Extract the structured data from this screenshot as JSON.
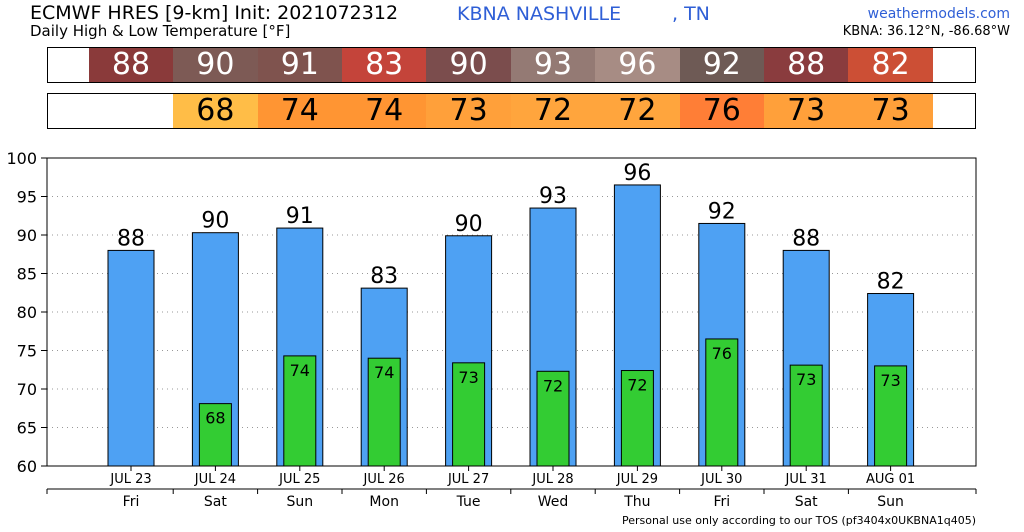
{
  "header": {
    "title": "ECMWF HRES [9-km] Init: 2021072312",
    "subtitle": "Daily High & Low Temperature [°F]",
    "station": "KBNA NASHVILLE",
    "state": ", TN",
    "site": "weathermodels.com",
    "coords": "KBNA: 36.12°N, -86.68°W"
  },
  "footer": "Personal use only according to our TOS (pf3404x0UKBNA1q405)",
  "strips": {
    "high_colors": [
      "#8a3a3a",
      "#7d5a55",
      "#7f534e",
      "#c4443a",
      "#7b4d4d",
      "#947a74",
      "#a78c84",
      "#6e5a55",
      "#8a3c3e",
      "#cc4f35"
    ],
    "low_colors": [
      "#ffbd47",
      "#ff9533",
      "#ff9533",
      "#ffa03a",
      "#ffa53d",
      "#ffa53d",
      "#ff7e36",
      "#ffa03a",
      "#ffa03a"
    ]
  },
  "chart_data": {
    "type": "bar",
    "categories": [
      "JUL 23",
      "JUL 24",
      "JUL 25",
      "JUL 26",
      "JUL 27",
      "JUL 28",
      "JUL 29",
      "JUL 30",
      "JUL 31",
      "AUG 01"
    ],
    "weekdays": [
      "Fri",
      "Sat",
      "Sun",
      "Mon",
      "Tue",
      "Wed",
      "Thu",
      "Fri",
      "Sat",
      "Sun"
    ],
    "series": [
      {
        "values": [
          88,
          90.3,
          90.9,
          83.1,
          89.9,
          93.5,
          96.5,
          91.5,
          88,
          82.4
        ],
        "labels": [
          "88",
          "90",
          "91",
          "83",
          "90",
          "93",
          "96",
          "92",
          "88",
          "82"
        ],
        "color": "#4ea1f3"
      },
      {
        "values": [
          null,
          68.1,
          74.3,
          74,
          73.4,
          72.3,
          72.4,
          76.5,
          73.1,
          73
        ],
        "labels": [
          "",
          "68",
          "74",
          "74",
          "73",
          "72",
          "72",
          "76",
          "73",
          "73"
        ],
        "color": "#33cc33"
      }
    ],
    "ylim": [
      60,
      100
    ],
    "yticks": [
      "60",
      "65",
      "70",
      "75",
      "80",
      "85",
      "90",
      "95",
      "100"
    ],
    "grid": true
  }
}
